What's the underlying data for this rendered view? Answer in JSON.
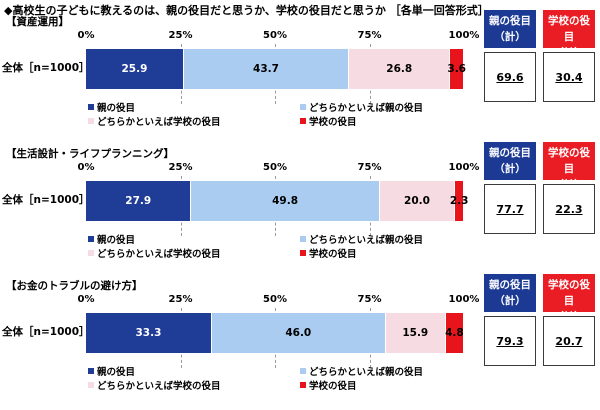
{
  "title": "◆高校生の子どもに教えるのは、親の役目だと思うか、学校の役目だと思うか ［各単一回答形式］",
  "badges": {
    "parent": "親の役目\n（計）",
    "school": "学校の役目\n（計）"
  },
  "colors": {
    "parent": "#1f3c96",
    "lean_parent": "#a9ccf0",
    "lean_school": "#f6dbe3",
    "school": "#e8141b",
    "badge_parent": "#1c3a94",
    "badge_school": "#ea1c24"
  },
  "chart_data": [
    {
      "type": "bar",
      "orientation": "horizontal-stacked-100",
      "title": "【資産運用】",
      "ticks": [
        "0%",
        "25%",
        "50%",
        "75%",
        "100%"
      ],
      "xlim": [
        0,
        100
      ],
      "grid": true,
      "categories": [
        "全体［n=1000］"
      ],
      "series": [
        {
          "name": "親の役目",
          "values": [
            25.9
          ]
        },
        {
          "name": "どちらかといえば親の役目",
          "values": [
            43.7
          ]
        },
        {
          "name": "どちらかといえば学校の役目",
          "values": [
            26.8
          ]
        },
        {
          "name": "学校の役目",
          "values": [
            3.6
          ]
        }
      ],
      "labels": [
        "25.9",
        "43.7",
        "26.8",
        "3.6"
      ],
      "totals": {
        "parent": "69.6",
        "school": "30.4"
      }
    },
    {
      "type": "bar",
      "orientation": "horizontal-stacked-100",
      "title": "【生活設計・ライフプランニング】",
      "ticks": [
        "0%",
        "25%",
        "50%",
        "75%",
        "100%"
      ],
      "xlim": [
        0,
        100
      ],
      "grid": true,
      "categories": [
        "全体［n=1000］"
      ],
      "series": [
        {
          "name": "親の役目",
          "values": [
            27.9
          ]
        },
        {
          "name": "どちらかといえば親の役目",
          "values": [
            49.8
          ]
        },
        {
          "name": "どちらかといえば学校の役目",
          "values": [
            20.0
          ]
        },
        {
          "name": "学校の役目",
          "values": [
            2.3
          ]
        }
      ],
      "labels": [
        "27.9",
        "49.8",
        "20.0",
        "2.3"
      ],
      "totals": {
        "parent": "77.7",
        "school": "22.3"
      }
    },
    {
      "type": "bar",
      "orientation": "horizontal-stacked-100",
      "title": "【お金のトラブルの避け方】",
      "ticks": [
        "0%",
        "25%",
        "50%",
        "75%",
        "100%"
      ],
      "xlim": [
        0,
        100
      ],
      "grid": true,
      "categories": [
        "全体［n=1000］"
      ],
      "series": [
        {
          "name": "親の役目",
          "values": [
            33.3
          ]
        },
        {
          "name": "どちらかといえば親の役目",
          "values": [
            46.0
          ]
        },
        {
          "name": "どちらかといえば学校の役目",
          "values": [
            15.9
          ]
        },
        {
          "name": "学校の役目",
          "values": [
            4.8
          ]
        }
      ],
      "labels": [
        "33.3",
        "46.0",
        "15.9",
        "4.8"
      ],
      "totals": {
        "parent": "79.3",
        "school": "20.7"
      }
    }
  ]
}
